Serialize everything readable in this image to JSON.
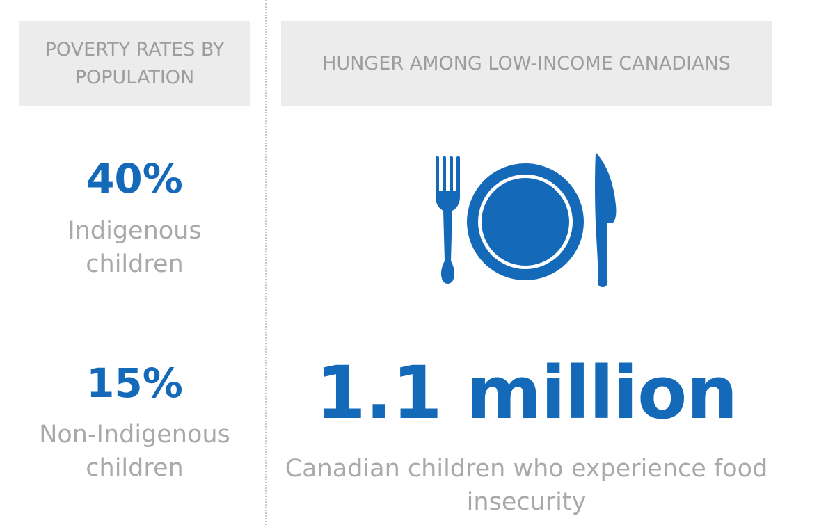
{
  "left": {
    "header": "POVERTY RATES BY POPULATION",
    "stats": [
      {
        "value": "40%",
        "label": "Indigenous children"
      },
      {
        "value": "15%",
        "label": "Non-Indigenous children"
      }
    ]
  },
  "right": {
    "header": "HUNGER AMONG LOW-INCOME CANADIANS",
    "icon": "plate-fork-knife-icon",
    "stat": {
      "value": "1.1 million",
      "label": "Canadian children who experience food insecurity"
    }
  },
  "colors": {
    "accent": "#1469b9",
    "header_bg": "#ececec",
    "header_text": "#9d9d9d",
    "label_text": "#a9a9a9"
  }
}
